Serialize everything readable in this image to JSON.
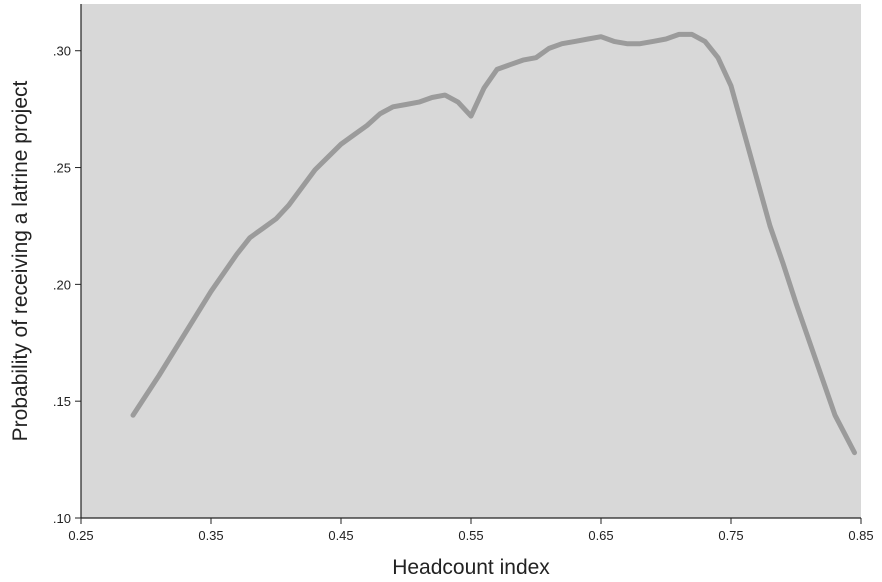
{
  "chart_data": {
    "type": "line",
    "title": "",
    "xlabel": "Headcount index",
    "ylabel": "Probability of receiving a latrine project",
    "xlim": [
      0.25,
      0.85
    ],
    "ylim": [
      0.1,
      0.32
    ],
    "x_ticks": [
      {
        "value": 0.25,
        "label": "0.25"
      },
      {
        "value": 0.35,
        "label": "0.35"
      },
      {
        "value": 0.45,
        "label": "0.45"
      },
      {
        "value": 0.55,
        "label": "0.55"
      },
      {
        "value": 0.65,
        "label": "0.65"
      },
      {
        "value": 0.75,
        "label": "0.75"
      },
      {
        "value": 0.85,
        "label": "0.85"
      }
    ],
    "y_ticks": [
      {
        "value": 0.1,
        "label": ".10"
      },
      {
        "value": 0.15,
        "label": ".15"
      },
      {
        "value": 0.2,
        "label": ".20"
      },
      {
        "value": 0.25,
        "label": ".25"
      },
      {
        "value": 0.3,
        "label": ".30"
      }
    ],
    "grid": false,
    "legend": "none",
    "colors": {
      "plot_background": "#d8d8d8",
      "line": "#9b9b9b",
      "axis": "#222222"
    },
    "series": [
      {
        "x": [
          0.29,
          0.31,
          0.33,
          0.35,
          0.37,
          0.38,
          0.39,
          0.4,
          0.41,
          0.43,
          0.45,
          0.46,
          0.47,
          0.48,
          0.49,
          0.5,
          0.51,
          0.52,
          0.53,
          0.54,
          0.545,
          0.55,
          0.555,
          0.56,
          0.57,
          0.58,
          0.59,
          0.6,
          0.61,
          0.62,
          0.63,
          0.64,
          0.65,
          0.66,
          0.67,
          0.68,
          0.69,
          0.7,
          0.71,
          0.72,
          0.73,
          0.74,
          0.75,
          0.76,
          0.77,
          0.78,
          0.79,
          0.8,
          0.81,
          0.82,
          0.83,
          0.845
        ],
        "y": [
          0.144,
          0.161,
          0.179,
          0.197,
          0.213,
          0.22,
          0.224,
          0.228,
          0.234,
          0.249,
          0.26,
          0.264,
          0.268,
          0.273,
          0.276,
          0.277,
          0.278,
          0.28,
          0.281,
          0.278,
          0.275,
          0.272,
          0.278,
          0.284,
          0.292,
          0.294,
          0.296,
          0.297,
          0.301,
          0.303,
          0.304,
          0.305,
          0.306,
          0.304,
          0.303,
          0.303,
          0.304,
          0.305,
          0.307,
          0.307,
          0.304,
          0.297,
          0.285,
          0.265,
          0.245,
          0.225,
          0.209,
          0.192,
          0.176,
          0.16,
          0.144,
          0.128
        ]
      }
    ]
  }
}
